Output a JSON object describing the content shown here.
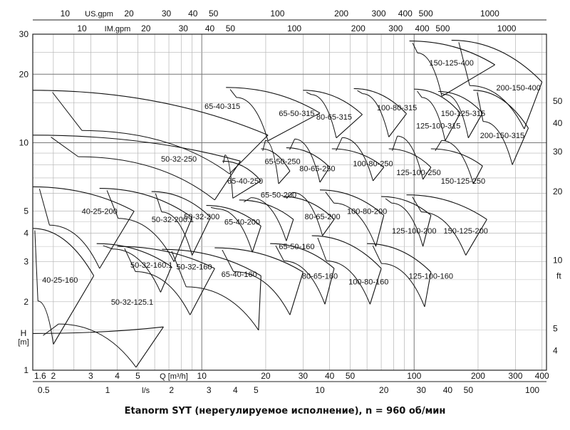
{
  "chart_data": {
    "type": "line",
    "title": "Etanorm SYT (нерегулируемое исполнение), n = 960 об/мин",
    "xlabel": "Q [m³/h]",
    "ylabel_top": "H",
    "ylabel_bottom": "[m]",
    "right_axis_label": "ft",
    "scale": "log-log",
    "grid": true,
    "xlim": [
      1.6,
      420
    ],
    "ylim": [
      1,
      30
    ],
    "top_axis_us": {
      "label": "US.gpm",
      "ticks": [
        "10",
        "20",
        "30",
        "40",
        "50",
        "100",
        "200",
        "300",
        "400",
        "500",
        "1000"
      ]
    },
    "top_axis_im": {
      "label": "IM.gpm",
      "ticks": [
        "10",
        "20",
        "30",
        "40",
        "50",
        "100",
        "200",
        "300",
        "400",
        "500",
        "1000"
      ]
    },
    "x_ticks": [
      "1.6",
      "2",
      "3",
      "4",
      "5",
      "10",
      "20",
      "30",
      "40",
      "50",
      "100",
      "200",
      "300",
      "400"
    ],
    "bottom_axis_ls": {
      "label": "l/s",
      "ticks": [
        "0.5",
        "1",
        "2",
        "3",
        "4",
        "5",
        "10",
        "20",
        "30",
        "40",
        "50",
        "100"
      ]
    },
    "y_ticks": [
      "1",
      "2",
      "3",
      "4",
      "5",
      "10",
      "20",
      "30"
    ],
    "right_ticks": [
      "4",
      "5",
      "10",
      "20",
      "30",
      "40",
      "50"
    ],
    "series": [
      {
        "name": "40-25-160",
        "label": "40-25-160"
      },
      {
        "name": "40-25-200",
        "label": "40-25-200"
      },
      {
        "name": "50-32-125.1",
        "label": "50-32-125.1"
      },
      {
        "name": "50-32-160.1",
        "label": "50-32-160.1"
      },
      {
        "name": "50-32-160",
        "label": "50-32-160"
      },
      {
        "name": "50-32-200.1",
        "label": "50-32-200.1"
      },
      {
        "name": "50-32-200",
        "label": "50-32-200"
      },
      {
        "name": "50-32-250",
        "label": "50-32-250"
      },
      {
        "name": "65-40-160",
        "label": "65-40-160"
      },
      {
        "name": "65-40-200",
        "label": "65-40-200"
      },
      {
        "name": "65-40-250",
        "label": "65-40-250"
      },
      {
        "name": "65-40-315",
        "label": "65-40-315"
      },
      {
        "name": "65-50-160",
        "label": "65-50-160"
      },
      {
        "name": "65-50-200",
        "label": "65-50-200"
      },
      {
        "name": "65-50-250",
        "label": "65-50-250"
      },
      {
        "name": "65-50-315",
        "label": "65-50-315"
      },
      {
        "name": "80-65-160",
        "label": "80-65-160"
      },
      {
        "name": "80-65-200",
        "label": "80-65-200"
      },
      {
        "name": "80-65-250",
        "label": "80-65-250"
      },
      {
        "name": "80-65-315",
        "label": "80-65-315"
      },
      {
        "name": "100-80-160",
        "label": "100-80-160"
      },
      {
        "name": "100-80-200",
        "label": "100-80-200"
      },
      {
        "name": "100-80-250",
        "label": "100-80-250"
      },
      {
        "name": "100-80-315",
        "label": "100-80-315"
      },
      {
        "name": "125-100-160",
        "label": "125-100-160"
      },
      {
        "name": "125-100-200",
        "label": "125-100-200"
      },
      {
        "name": "125-100-250",
        "label": "125-100-250"
      },
      {
        "name": "125-100-315",
        "label": "125-100-315"
      },
      {
        "name": "150-125-200",
        "label": "150-125-200"
      },
      {
        "name": "150-125-250",
        "label": "150-125-250"
      },
      {
        "name": "150-125-315",
        "label": "150-125-315"
      },
      {
        "name": "150-125-400",
        "label": "150-125-400"
      },
      {
        "name": "200-150-315",
        "label": "200-150-315"
      },
      {
        "name": "200-150-400",
        "label": "200-150-400"
      }
    ]
  }
}
